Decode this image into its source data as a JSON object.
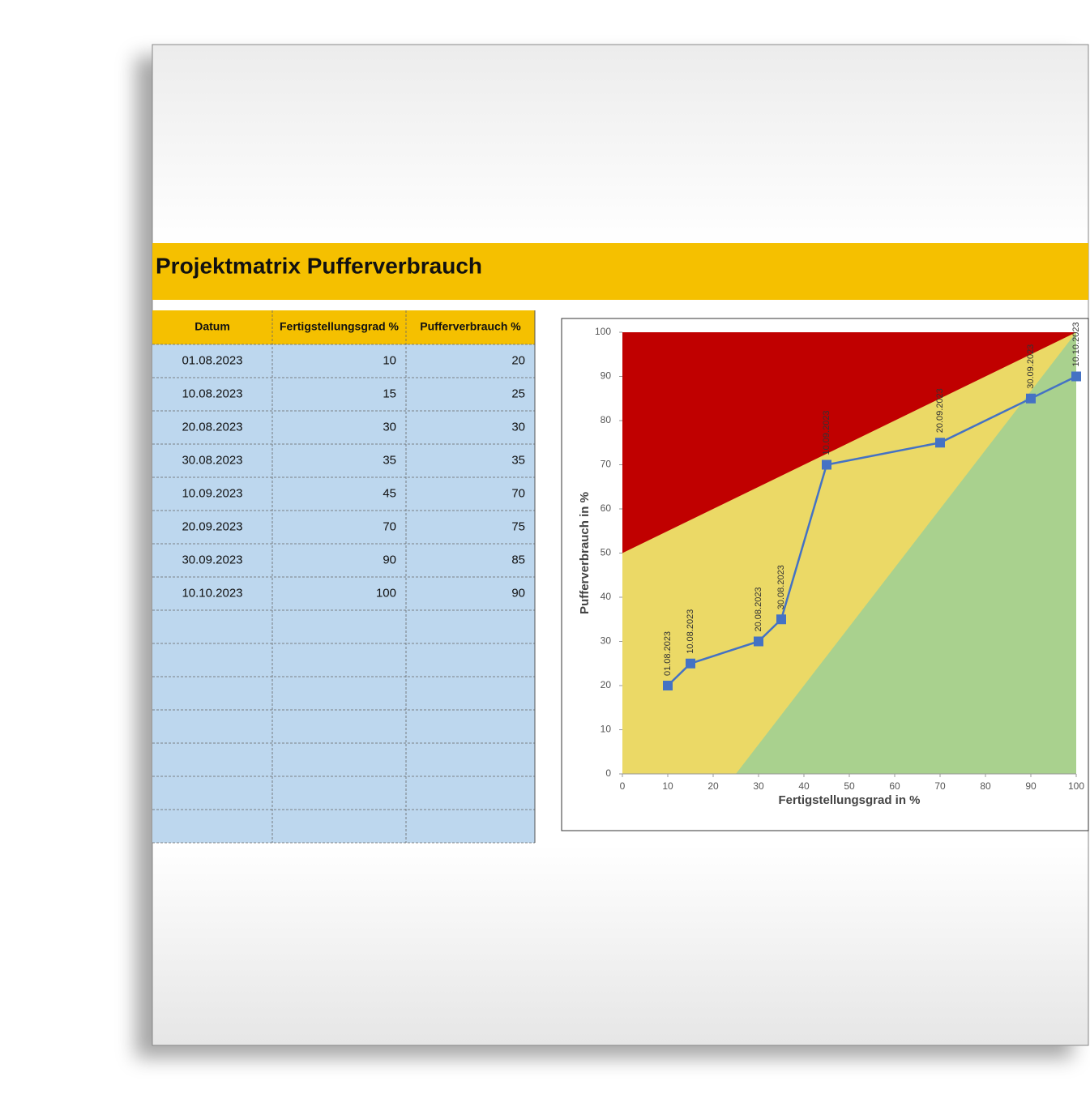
{
  "title": "Projektmatrix Pufferverbrauch",
  "table": {
    "headers": [
      "Datum",
      "Fertigstellungsgrad %",
      "Pufferverbrauch %"
    ],
    "rows": [
      [
        "01.08.2023",
        10,
        20
      ],
      [
        "10.08.2023",
        15,
        25
      ],
      [
        "20.08.2023",
        30,
        30
      ],
      [
        "30.08.2023",
        35,
        35
      ],
      [
        "10.09.2023",
        45,
        70
      ],
      [
        "20.09.2023",
        70,
        75
      ],
      [
        "30.09.2023",
        90,
        85
      ],
      [
        "10.10.2023",
        100,
        90
      ]
    ]
  },
  "chart_data": {
    "type": "line",
    "x_label": "Fertigstellungsgrad in %",
    "y_label": "Pufferverbrauch in %",
    "x": [
      10,
      15,
      30,
      35,
      45,
      70,
      90,
      100
    ],
    "series": [
      {
        "color": "#4472c4",
        "values": [
          20,
          25,
          30,
          35,
          70,
          75,
          85,
          90
        ],
        "labels": [
          "01.08.2023",
          "10.08.2023",
          "20.08.2023",
          "30.08.2023",
          "10.09.2023",
          "20.09.2023",
          "30.09.2023",
          "10.10.2023"
        ]
      }
    ],
    "zones": [
      {
        "color": "#ebd966",
        "points": [
          [
            0,
            0
          ],
          [
            100,
            0
          ],
          [
            100,
            100
          ],
          [
            0,
            100
          ]
        ]
      },
      {
        "color": "#c00000",
        "points": [
          [
            0,
            50
          ],
          [
            0,
            100
          ],
          [
            100,
            100
          ]
        ]
      },
      {
        "color": "#a9d18e",
        "points": [
          [
            25,
            0
          ],
          [
            100,
            0
          ],
          [
            100,
            100
          ]
        ]
      }
    ],
    "xlim": [
      0,
      100
    ],
    "ylim": [
      0,
      100
    ],
    "xticks": [
      0,
      10,
      20,
      30,
      40,
      50,
      60,
      70,
      80,
      90,
      100
    ],
    "yticks": [
      0,
      10,
      20,
      30,
      40,
      50,
      60,
      70,
      80,
      90,
      100
    ]
  }
}
